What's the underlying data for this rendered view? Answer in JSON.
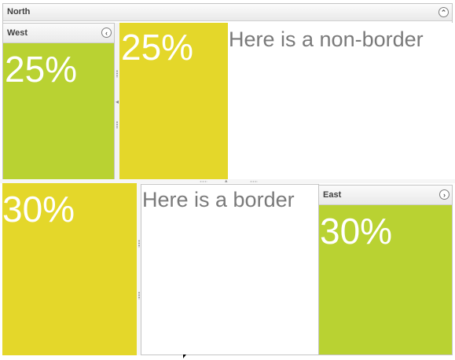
{
  "north": {
    "title": "North",
    "tool_icon": "chevron-up-icon"
  },
  "west": {
    "title": "West",
    "tool_icon": "chevron-left-icon",
    "percent": "25%"
  },
  "top_center": {
    "percent": "25%",
    "text": "Here is a non-border"
  },
  "bottom_left": {
    "percent": "30%"
  },
  "bottom_center": {
    "text": "Here is a border"
  },
  "east": {
    "title": "East",
    "tool_icon": "chevron-right-icon",
    "percent": "30%"
  },
  "colors": {
    "green": "#b9d232",
    "yellow": "#e4d72a",
    "header_border": "#99bbe8"
  }
}
